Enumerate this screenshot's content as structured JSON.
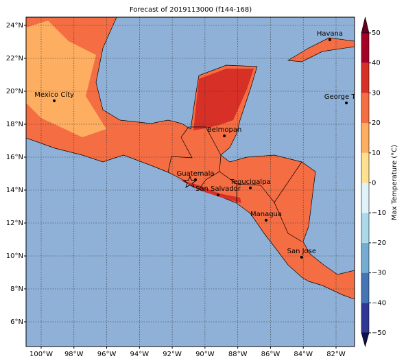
{
  "title": "Forecast of 2019113000 (f144-168)",
  "map": {
    "xlim": [
      -100.92,
      -80.87
    ],
    "ylim": [
      4.5,
      24.5
    ],
    "grid": true,
    "xticks": [
      {
        "value": -100,
        "label": "100°W"
      },
      {
        "value": -98,
        "label": "98°W"
      },
      {
        "value": -96,
        "label": "96°W"
      },
      {
        "value": -94,
        "label": "94°W"
      },
      {
        "value": -92,
        "label": "92°W"
      },
      {
        "value": -90,
        "label": "90°W"
      },
      {
        "value": -88,
        "label": "88°W"
      },
      {
        "value": -86,
        "label": "86°W"
      },
      {
        "value": -84,
        "label": "84°W"
      },
      {
        "value": -82,
        "label": "82°W"
      }
    ],
    "yticks": [
      {
        "value": 6,
        "label": "6°N"
      },
      {
        "value": 8,
        "label": "8°N"
      },
      {
        "value": 10,
        "label": "10°N"
      },
      {
        "value": 12,
        "label": "12°N"
      },
      {
        "value": 14,
        "label": "14°N"
      },
      {
        "value": 16,
        "label": "16°N"
      },
      {
        "value": 18,
        "label": "18°N"
      },
      {
        "value": 20,
        "label": "20°N"
      },
      {
        "value": 22,
        "label": "22°N"
      },
      {
        "value": 24,
        "label": "24°N"
      }
    ],
    "cities": [
      {
        "name": "Mexico City",
        "lon": -99.2,
        "lat": 19.42
      },
      {
        "name": "Havana",
        "lon": -82.38,
        "lat": 23.13
      },
      {
        "name": "George Town",
        "lon": -81.37,
        "lat": 19.29
      },
      {
        "name": "Belmopan",
        "lon": -88.82,
        "lat": 17.29
      },
      {
        "name": "Guatemala",
        "lon": -90.58,
        "lat": 14.63
      },
      {
        "name": "San Salvador",
        "lon": -89.2,
        "lat": 13.71
      },
      {
        "name": "Tegucigalpa",
        "lon": -87.23,
        "lat": 14.13
      },
      {
        "name": "Managua",
        "lon": -86.27,
        "lat": 12.17
      },
      {
        "name": "San Jose",
        "lon": -84.1,
        "lat": 9.92
      }
    ]
  },
  "colorbar": {
    "label": "Max Temperature (°C)",
    "lim": [
      -50,
      50
    ],
    "ticks": [
      {
        "value": -50,
        "label": "−50"
      },
      {
        "value": -40,
        "label": "−40"
      },
      {
        "value": -30,
        "label": "−30"
      },
      {
        "value": -20,
        "label": "−20"
      },
      {
        "value": -10,
        "label": "−10"
      },
      0,
      10,
      20,
      30,
      40,
      50
    ],
    "levels": [
      -50,
      -40,
      -30,
      -20,
      -10,
      0,
      10,
      20,
      30,
      40,
      50
    ],
    "colors": [
      "#313695",
      "#4575b4",
      "#74add1",
      "#abd9e9",
      "#e0f3f8",
      "#fee090",
      "#fdae61",
      "#f46d43",
      "#d73027",
      "#a50026"
    ]
  }
}
